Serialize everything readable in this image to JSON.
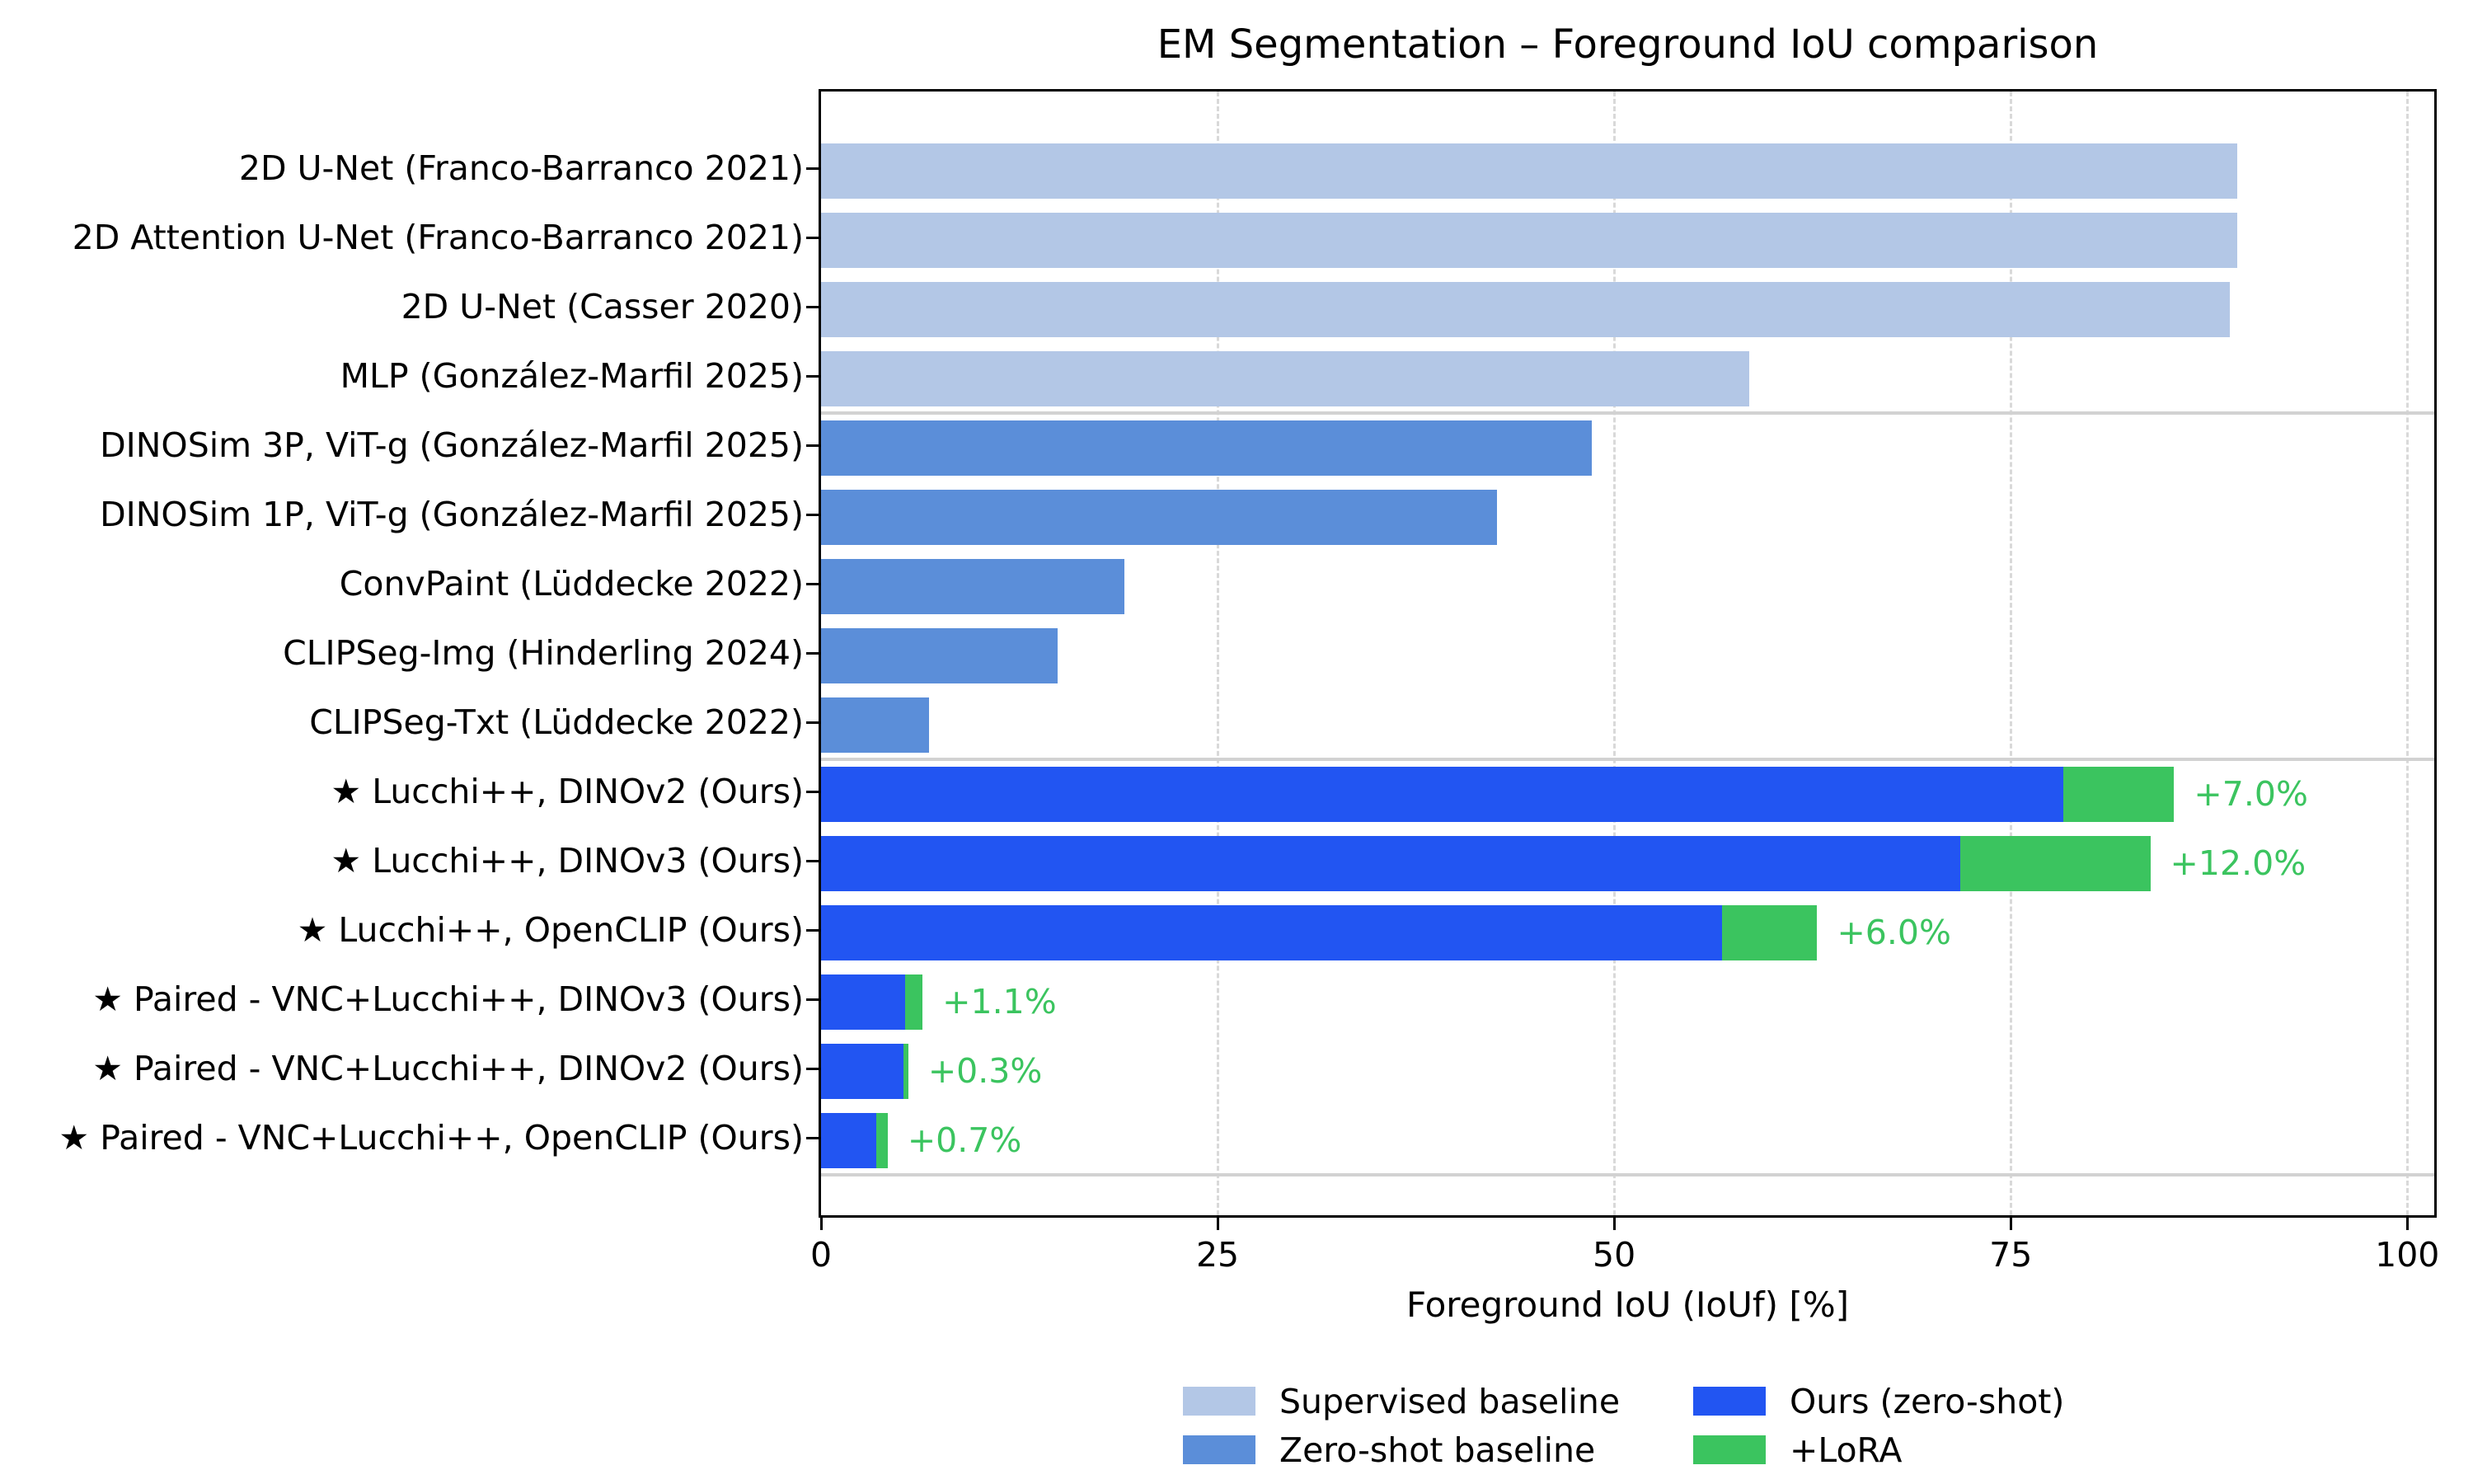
{
  "chart_data": {
    "type": "bar",
    "orientation": "horizontal",
    "title": "EM Segmentation – Foreground IoU comparison",
    "xlabel": "Foreground IoU (IoUf) [%]",
    "xlim": [
      0,
      101.7
    ],
    "xticks": [
      0,
      25,
      50,
      75,
      100
    ],
    "grid": "vertical dashed gridlines at xticks, drawn behind bars",
    "legend_position": "below axis, two columns, no frame",
    "colors": {
      "supervised": "#b3c7e6",
      "zeroshot": "#5b8ed9",
      "ours": "#2255f2",
      "lora": "#3bc45f",
      "annotation": "#3bc45f"
    },
    "group_separators_after_row": [
      4,
      9,
      15
    ],
    "rows": [
      {
        "label": "2D U-Net (Franco-Barranco 2021)",
        "group": "supervised",
        "value": 89.3
      },
      {
        "label": "2D Attention U-Net (Franco-Barranco 2021)",
        "group": "supervised",
        "value": 89.3
      },
      {
        "label": "2D U-Net (Casser 2020)",
        "group": "supervised",
        "value": 88.8
      },
      {
        "label": "MLP (González-Marfil 2025)",
        "group": "supervised",
        "value": 58.5
      },
      {
        "label": "DINOSim 3P, ViT-g (González-Marfil 2025)",
        "group": "zeroshot",
        "value": 48.6
      },
      {
        "label": "DINOSim 1P, ViT-g (González-Marfil 2025)",
        "group": "zeroshot",
        "value": 42.6
      },
      {
        "label": "ConvPaint (Lüddecke 2022)",
        "group": "zeroshot",
        "value": 19.1
      },
      {
        "label": "CLIPSeg-Img (Hinderling 2024)",
        "group": "zeroshot",
        "value": 14.9
      },
      {
        "label": "CLIPSeg-Txt (Lüddecke 2022)",
        "group": "zeroshot",
        "value": 6.8
      },
      {
        "label": "★ Lucchi++, DINOv2 (Ours)",
        "group": "ours",
        "value": 78.3,
        "lora": 7.0,
        "annotation": "+7.0%"
      },
      {
        "label": "★ Lucchi++, DINOv3 (Ours)",
        "group": "ours",
        "value": 71.8,
        "lora": 12.0,
        "annotation": "+12.0%"
      },
      {
        "label": "★ Lucchi++, OpenCLIP (Ours)",
        "group": "ours",
        "value": 56.8,
        "lora": 6.0,
        "annotation": "+6.0%"
      },
      {
        "label": "★ Paired - VNC+Lucchi++, DINOv3 (Ours)",
        "group": "ours",
        "value": 5.3,
        "lora": 1.1,
        "annotation": "+1.1%"
      },
      {
        "label": "★ Paired - VNC+Lucchi++, DINOv2 (Ours)",
        "group": "ours",
        "value": 5.2,
        "lora": 0.3,
        "annotation": "+0.3%"
      },
      {
        "label": "★ Paired - VNC+Lucchi++, OpenCLIP (Ours)",
        "group": "ours",
        "value": 3.5,
        "lora": 0.7,
        "annotation": "+0.7%"
      }
    ],
    "legend": [
      {
        "label": "Supervised baseline",
        "color_key": "supervised"
      },
      {
        "label": "Ours (zero-shot)",
        "color_key": "ours"
      },
      {
        "label": "Zero-shot baseline",
        "color_key": "zeroshot"
      },
      {
        "label": "+LoRA",
        "color_key": "lora"
      }
    ]
  }
}
